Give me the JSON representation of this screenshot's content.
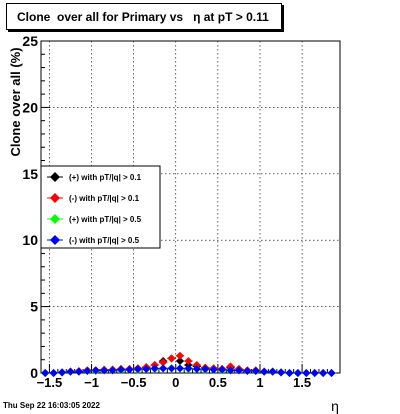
{
  "chart_data": {
    "type": "scatter",
    "title": "Clone  over all for Primary vs   η at pT > 0.11",
    "xlabel": "η",
    "ylabel": "Clone  over all (%)",
    "xlim": [
      -1.6,
      1.95
    ],
    "ylim": [
      0,
      25
    ],
    "xticks": [
      -1.5,
      -1,
      -0.5,
      0,
      0.5,
      1,
      1.5
    ],
    "xtick_labels": [
      "−1.5",
      "−1",
      "−0.5",
      "0",
      "0.5",
      "1",
      "1.5"
    ],
    "yticks": [
      0,
      5,
      10,
      15,
      20,
      25
    ],
    "ytick_labels": [
      "0",
      "5",
      "10",
      "15",
      "20",
      "25"
    ],
    "grid": true,
    "legend_placement": "center-left",
    "series": [
      {
        "name": "(+) with pT/|q| > 0.1",
        "color": "#000000",
        "x": [
          -1.55,
          -1.45,
          -1.35,
          -1.25,
          -1.15,
          -1.05,
          -0.95,
          -0.85,
          -0.75,
          -0.65,
          -0.55,
          -0.45,
          -0.35,
          -0.25,
          -0.15,
          -0.05,
          0.05,
          0.15,
          0.25,
          0.35,
          0.45,
          0.55,
          0.65,
          0.75,
          0.85,
          0.95,
          1.05,
          1.15,
          1.25,
          1.35,
          1.45,
          1.55,
          1.65,
          1.75,
          1.85
        ],
        "y": [
          0,
          0,
          0.05,
          0.1,
          0.1,
          0.2,
          0.2,
          0.2,
          0.25,
          0.3,
          0.3,
          0.35,
          0.4,
          0.6,
          0.9,
          1.1,
          0.9,
          0.6,
          0.5,
          0.4,
          0.35,
          0.3,
          0.4,
          0.3,
          0.2,
          0.2,
          0.1,
          0.1,
          0.05,
          0,
          0,
          0,
          0,
          0,
          0
        ]
      },
      {
        "name": "(-) with pT/|q| > 0.1",
        "color": "#ff0000",
        "x": [
          -1.55,
          -1.45,
          -1.35,
          -1.25,
          -1.15,
          -1.05,
          -0.95,
          -0.85,
          -0.75,
          -0.65,
          -0.55,
          -0.45,
          -0.35,
          -0.25,
          -0.15,
          -0.05,
          0.05,
          0.15,
          0.25,
          0.35,
          0.45,
          0.55,
          0.65,
          0.75,
          0.85,
          0.95,
          1.05,
          1.15,
          1.25,
          1.35,
          1.45,
          1.55,
          1.65,
          1.75,
          1.85
        ],
        "y": [
          0,
          0,
          0.05,
          0.1,
          0.15,
          0.2,
          0.2,
          0.25,
          0.25,
          0.3,
          0.3,
          0.35,
          0.45,
          0.6,
          0.8,
          1.1,
          1.3,
          0.9,
          0.6,
          0.4,
          0.35,
          0.3,
          0.5,
          0.3,
          0.2,
          0.2,
          0.1,
          0.1,
          0.05,
          0,
          0,
          0,
          0,
          0,
          0
        ]
      },
      {
        "name": "(+) with pT/|q| > 0.5",
        "color": "#00ff00",
        "x": [
          -1.55,
          -1.45,
          -1.35,
          -1.25,
          -1.15,
          -1.05,
          -0.95,
          -0.85,
          -0.75,
          -0.65,
          -0.55,
          -0.45,
          -0.35,
          -0.25,
          -0.15,
          -0.05,
          0.05,
          0.15,
          0.25,
          0.35,
          0.45,
          0.55,
          0.65,
          0.75,
          0.85,
          0.95,
          1.05,
          1.15,
          1.25,
          1.35,
          1.45,
          1.55,
          1.65,
          1.75,
          1.85
        ],
        "y": [
          0,
          0,
          0.05,
          0.1,
          0.1,
          0.15,
          0.15,
          0.2,
          0.2,
          0.2,
          0.25,
          0.25,
          0.3,
          0.3,
          0.35,
          0.35,
          0.35,
          0.3,
          0.3,
          0.25,
          0.25,
          0.2,
          0.2,
          0.2,
          0.15,
          0.15,
          0.1,
          0.1,
          0.05,
          0,
          0,
          0,
          0,
          0,
          0
        ]
      },
      {
        "name": "(-) with pT/|q| > 0.5",
        "color": "#0000ff",
        "x": [
          -1.55,
          -1.45,
          -1.35,
          -1.25,
          -1.15,
          -1.05,
          -0.95,
          -0.85,
          -0.75,
          -0.65,
          -0.55,
          -0.45,
          -0.35,
          -0.25,
          -0.15,
          -0.05,
          0.05,
          0.15,
          0.25,
          0.35,
          0.45,
          0.55,
          0.65,
          0.75,
          0.85,
          0.95,
          1.05,
          1.15,
          1.25,
          1.35,
          1.45,
          1.55,
          1.65,
          1.75,
          1.85
        ],
        "y": [
          0,
          0,
          0.05,
          0.1,
          0.1,
          0.15,
          0.2,
          0.2,
          0.2,
          0.25,
          0.25,
          0.3,
          0.3,
          0.35,
          0.35,
          0.35,
          0.35,
          0.35,
          0.3,
          0.3,
          0.25,
          0.25,
          0.2,
          0.2,
          0.15,
          0.15,
          0.1,
          0.1,
          0.05,
          0,
          0,
          0,
          0,
          0,
          0
        ]
      }
    ]
  },
  "footer": {
    "timestamp": "Thu Sep 22 16:03:05 2022"
  }
}
